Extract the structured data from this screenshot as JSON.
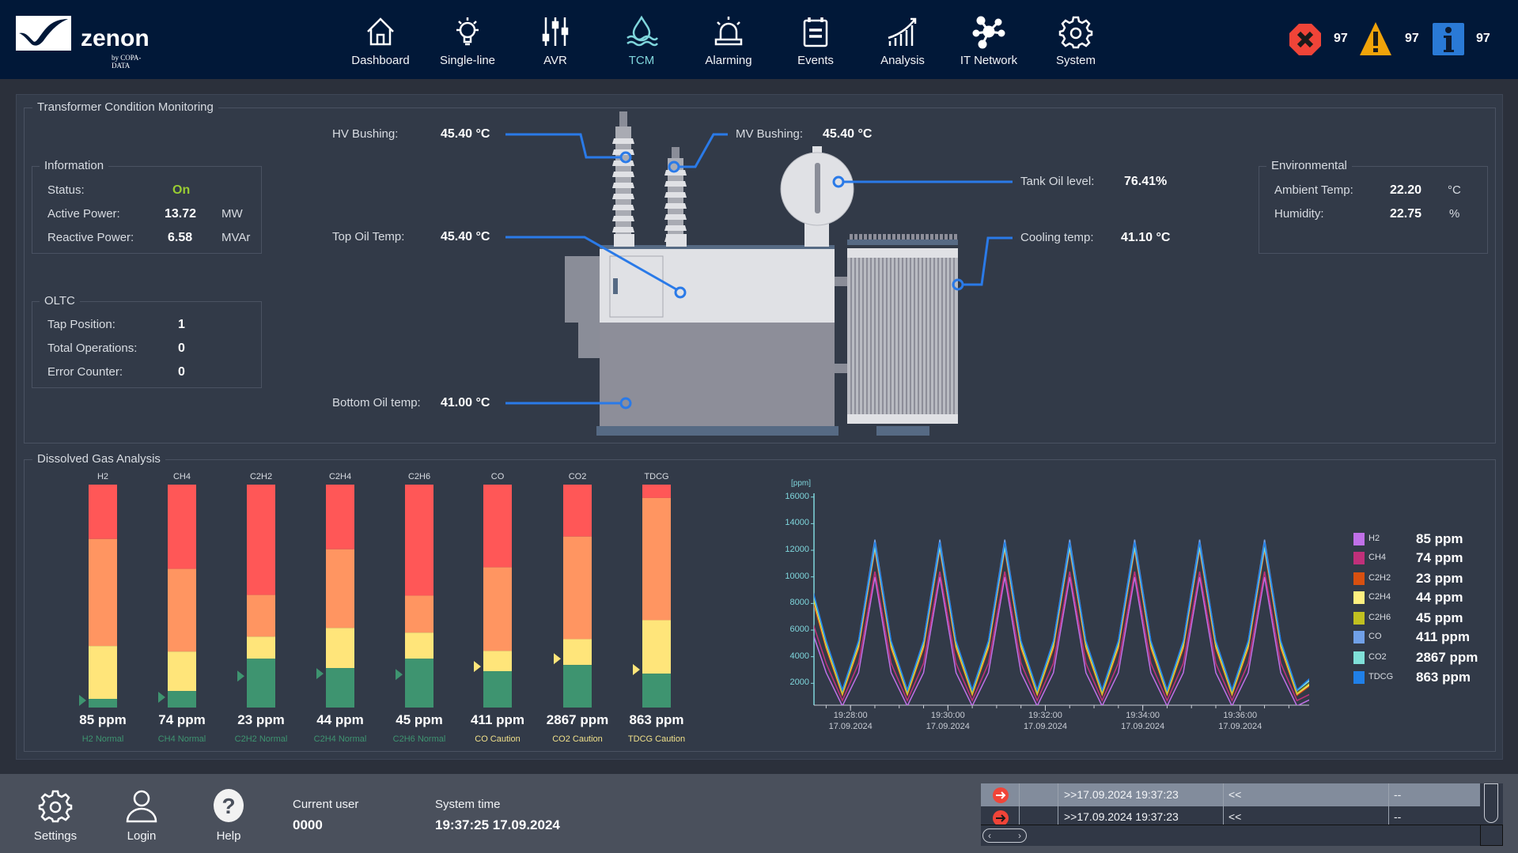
{
  "header": {
    "logo_text": "zenon",
    "logo_sub": "by COPA-DATA",
    "nav": [
      {
        "label": "Dashboard",
        "icon": "home-icon"
      },
      {
        "label": "Single-line",
        "icon": "lightbulb-icon"
      },
      {
        "label": "AVR",
        "icon": "sliders-icon"
      },
      {
        "label": "TCM",
        "icon": "oil-drop-icon",
        "active": true
      },
      {
        "label": "Alarming",
        "icon": "siren-icon"
      },
      {
        "label": "Events",
        "icon": "notepad-icon"
      },
      {
        "label": "Analysis",
        "icon": "growth-chart-icon"
      },
      {
        "label": "IT Network",
        "icon": "network-icon"
      },
      {
        "label": "System",
        "icon": "gear-icon"
      }
    ],
    "alarms": {
      "error_count": "97",
      "warning_count": "97",
      "info_count": "97"
    },
    "colors": {
      "bg": "#011838",
      "active": "#7fd6dc",
      "error": "#f04438",
      "warning": "#f0a30a",
      "info": "#2a7ad6"
    }
  },
  "tcm": {
    "title": "Transformer Condition Monitoring",
    "information": {
      "title": "Information",
      "status_label": "Status:",
      "status_value": "On",
      "active_label": "Active Power:",
      "active_value": "13.72",
      "active_unit": "MW",
      "reactive_label": "Reactive Power:",
      "reactive_value": "6.58",
      "reactive_unit": "MVAr"
    },
    "oltc": {
      "title": "OLTC",
      "tap_label": "Tap Position:",
      "tap_value": "1",
      "ops_label": "Total Operations:",
      "ops_value": "0",
      "err_label": "Error Counter:",
      "err_value": "0"
    },
    "sensors": {
      "hv_label": "HV Bushing:",
      "hv_value": "45.40 °C",
      "top_label": "Top Oil Temp:",
      "top_value": "45.40 °C",
      "bottom_label": "Bottom Oil temp:",
      "bottom_value": "41.00 °C",
      "mv_label": "MV Bushing:",
      "mv_value": "45.40 °C",
      "tank_label": "Tank Oil level:",
      "tank_value": "76.41%",
      "cooling_label": "Cooling temp:",
      "cooling_value": "41.10 °C"
    },
    "environmental": {
      "title": "Environmental",
      "ambient_label": "Ambient Temp:",
      "ambient_value": "22.20",
      "ambient_unit": "°C",
      "humidity_label": "Humidity:",
      "humidity_value": "22.75",
      "humidity_unit": "%"
    }
  },
  "dga": {
    "title": "Dissolved Gas Analysis",
    "zone_colors": {
      "green": "#3e9470",
      "yellow": "#ffe57a",
      "orange": "#ff9561",
      "red": "#ff5757",
      "caution_text": "#f0e08a",
      "normal_text": "#3e9470"
    },
    "bars": [
      {
        "gas": "H2",
        "value": "85 ppm",
        "status": "H2 Normal",
        "state": "normal",
        "marker": 0.032,
        "green_top": 0.039,
        "yellow_top": 0.276,
        "orange_top": 0.756
      },
      {
        "gas": "CH4",
        "value": "74 ppm",
        "status": "CH4 Normal",
        "state": "normal",
        "marker": 0.046,
        "green_top": 0.074,
        "yellow_top": 0.251,
        "orange_top": 0.622
      },
      {
        "gas": "C2H2",
        "value": "23 ppm",
        "status": "C2H2 Normal",
        "state": "normal",
        "marker": 0.141,
        "green_top": 0.219,
        "yellow_top": 0.318,
        "orange_top": 0.505
      },
      {
        "gas": "C2H4",
        "value": "44 ppm",
        "status": "C2H4 Normal",
        "state": "normal",
        "marker": 0.152,
        "green_top": 0.177,
        "yellow_top": 0.357,
        "orange_top": 0.71
      },
      {
        "gas": "C2H6",
        "value": "45 ppm",
        "status": "C2H6 Normal",
        "state": "normal",
        "marker": 0.148,
        "green_top": 0.219,
        "yellow_top": 0.336,
        "orange_top": 0.502
      },
      {
        "gas": "CO",
        "value": "411 ppm",
        "status": "CO Caution",
        "state": "caution",
        "marker": 0.184,
        "green_top": 0.163,
        "yellow_top": 0.254,
        "orange_top": 0.629
      },
      {
        "gas": "CO2",
        "value": "2867 ppm",
        "status": "CO2 Caution",
        "state": "caution",
        "marker": 0.219,
        "green_top": 0.191,
        "yellow_top": 0.307,
        "orange_top": 0.767
      },
      {
        "gas": "TDCG",
        "value": "863 ppm",
        "status": "TDCG Caution",
        "state": "caution",
        "marker": 0.17,
        "green_top": 0.152,
        "yellow_top": 0.392,
        "orange_top": 0.94
      }
    ]
  },
  "chart_data": {
    "type": "line",
    "ylabel": "[ppm]",
    "ylim": [
      0,
      16400
    ],
    "yticks": [
      "2000",
      "4000",
      "6000",
      "8000",
      "10000",
      "12000",
      "14000",
      "16000"
    ],
    "xlim": [
      "19:27:15",
      "19:37:25"
    ],
    "xticks": [
      {
        "time": "19:28:00",
        "date": "17.09.2024"
      },
      {
        "time": "19:30:00",
        "date": "17.09.2024"
      },
      {
        "time": "19:32:00",
        "date": "17.09.2024"
      },
      {
        "time": "19:34:00",
        "date": "17.09.2024"
      },
      {
        "time": "19:36:00",
        "date": "17.09.2024"
      }
    ],
    "x": [
      "19:27:10",
      "19:27:30",
      "19:27:50",
      "19:28:10",
      "19:28:30",
      "19:28:50",
      "19:29:10",
      "19:29:30",
      "19:29:50",
      "19:30:10",
      "19:30:30",
      "19:30:50",
      "19:31:10",
      "19:31:30",
      "19:31:50",
      "19:32:10",
      "19:32:30",
      "19:32:50",
      "19:33:10",
      "19:33:30",
      "19:33:50",
      "19:34:10",
      "19:34:30",
      "19:34:50",
      "19:35:10",
      "19:35:30",
      "19:35:50",
      "19:36:10",
      "19:36:30",
      "19:36:50",
      "19:37:10",
      "19:37:30"
    ],
    "legend": "right",
    "series": [
      {
        "name": "H2",
        "current": "85 ppm",
        "color": "#c070e8",
        "values": [
          6400,
          2800,
          300,
          2800,
          10000,
          2800,
          300,
          2800,
          10000,
          2800,
          300,
          2800,
          10000,
          2800,
          300,
          2800,
          10000,
          2800,
          300,
          2800,
          10000,
          2800,
          300,
          2800,
          10000,
          2800,
          300,
          2800,
          10000,
          2800,
          300,
          900
        ]
      },
      {
        "name": "CH4",
        "current": "74 ppm",
        "color": "#c0307a",
        "values": [
          7200,
          3500,
          700,
          3500,
          10400,
          3500,
          700,
          3500,
          10400,
          3500,
          700,
          3500,
          10400,
          3500,
          700,
          3500,
          10400,
          3500,
          700,
          3500,
          10400,
          3500,
          700,
          3500,
          10400,
          3500,
          700,
          3500,
          10400,
          3500,
          700,
          1300
        ]
      },
      {
        "name": "C2H2",
        "current": "23 ppm",
        "color": "#d85010",
        "values": [
          9000,
          4600,
          1100,
          4600,
          12000,
          4600,
          1100,
          4600,
          12000,
          4600,
          1100,
          4600,
          12000,
          4600,
          1100,
          4600,
          12000,
          4600,
          1100,
          4600,
          12000,
          4600,
          1100,
          4600,
          12000,
          4600,
          1100,
          4600,
          12000,
          4600,
          1100,
          2000
        ]
      },
      {
        "name": "C2H4",
        "current": "44 ppm",
        "color": "#fff080",
        "values": [
          9300,
          4800,
          1200,
          4800,
          12400,
          4800,
          1200,
          4800,
          12400,
          4800,
          1200,
          4800,
          12400,
          4800,
          1200,
          4800,
          12400,
          4800,
          1200,
          4800,
          12400,
          4800,
          1200,
          4800,
          12400,
          4800,
          1200,
          4800,
          12400,
          4800,
          1200,
          2100
        ]
      },
      {
        "name": "C2H6",
        "current": "45 ppm",
        "color": "#c0c020",
        "values": [
          9400,
          4900,
          1250,
          4900,
          12500,
          4900,
          1250,
          4900,
          12500,
          4900,
          1250,
          4900,
          12500,
          4900,
          1250,
          4900,
          12500,
          4900,
          1250,
          4900,
          12500,
          4900,
          1250,
          4900,
          12500,
          4900,
          1250,
          4900,
          12500,
          4900,
          1250,
          2200
        ]
      },
      {
        "name": "CO",
        "current": "411 ppm",
        "color": "#70a0e8",
        "values": [
          9700,
          5200,
          1500,
          5200,
          12800,
          5200,
          1500,
          5200,
          12800,
          5200,
          1500,
          5200,
          12800,
          5200,
          1500,
          5200,
          12800,
          5200,
          1500,
          5200,
          12800,
          5200,
          1500,
          5200,
          12800,
          5200,
          1500,
          5200,
          12800,
          5200,
          1500,
          2500
        ]
      },
      {
        "name": "CO2",
        "current": "2867 ppm",
        "color": "#80e0d8",
        "values": [
          9600,
          5100,
          1450,
          5100,
          12200,
          5100,
          1450,
          5100,
          12200,
          5100,
          1450,
          5100,
          12200,
          5100,
          1450,
          5100,
          12200,
          5100,
          1450,
          5100,
          12200,
          5100,
          1450,
          5100,
          12200,
          5100,
          1450,
          5100,
          12200,
          5100,
          1450,
          2400
        ]
      },
      {
        "name": "TDCG",
        "current": "863 ppm",
        "color": "#2080e8",
        "values": [
          9800,
          5200,
          1500,
          5200,
          12600,
          5200,
          1500,
          5200,
          12600,
          5200,
          1500,
          5200,
          12600,
          5200,
          1500,
          5200,
          12600,
          5200,
          1500,
          5200,
          12600,
          5200,
          1500,
          5200,
          12600,
          5200,
          1500,
          5200,
          12600,
          5200,
          1500,
          2600
        ]
      }
    ]
  },
  "footer": {
    "settings_label": "Settings",
    "login_label": "Login",
    "help_label": "Help",
    "user_label": "Current user",
    "user_value": "0000",
    "time_label": "System time",
    "time_value": "19:37:25 17.09.2024"
  },
  "alarm_list": {
    "rows": [
      {
        "time": ">>17.09.2024 19:37:23",
        "text": "<<",
        "extra": "--",
        "selected": true
      },
      {
        "time": ">>17.09.2024 19:37:23",
        "text": "<<",
        "extra": "--",
        "selected": false
      }
    ]
  }
}
